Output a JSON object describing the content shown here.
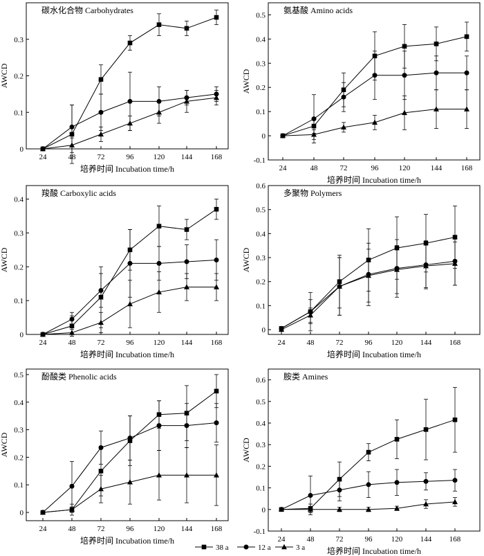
{
  "figure": {
    "xlabel": "培养时间 Incubation time/h",
    "ylabel": "AWCD",
    "x": [
      24,
      48,
      72,
      96,
      120,
      144,
      168
    ],
    "legend": [
      {
        "label": "38 a",
        "marker": "square"
      },
      {
        "label": "12 a",
        "marker": "circle"
      },
      {
        "label": "3 a",
        "marker": "triangle"
      }
    ]
  },
  "chart_data": [
    {
      "type": "line",
      "title": "碳水化合物 Carbohydrates",
      "xlabel": "培养时间 Incubation time/h",
      "ylabel": "AWCD",
      "categories": [
        24,
        48,
        72,
        96,
        120,
        144,
        168
      ],
      "ylim": [
        0,
        0.4
      ],
      "yticks": [
        0,
        0.1,
        0.2,
        0.3
      ],
      "series": [
        {
          "name": "38 a",
          "values": [
            0,
            0.04,
            0.19,
            0.29,
            0.34,
            0.33,
            0.36
          ],
          "errors": [
            0,
            0.08,
            0.04,
            0.02,
            0.03,
            0.02,
            0.02
          ]
        },
        {
          "name": "12 a",
          "values": [
            0,
            0.06,
            0.1,
            0.13,
            0.13,
            0.14,
            0.15
          ],
          "errors": [
            0,
            0.06,
            0.05,
            0.08,
            0.04,
            0.02,
            0.02
          ]
        },
        {
          "name": "3 a",
          "values": [
            0,
            0.01,
            0.04,
            0.07,
            0.1,
            0.13,
            0.14
          ],
          "errors": [
            0,
            0.02,
            0.02,
            0.02,
            0.03,
            0.03,
            0.02
          ]
        }
      ]
    },
    {
      "type": "line",
      "title": "氨基酸 Amino acids",
      "xlabel": "培养时间 Incubation time/h",
      "ylabel": "AWCD",
      "categories": [
        24,
        48,
        72,
        96,
        120,
        144,
        168
      ],
      "ylim": [
        -0.1,
        0.55
      ],
      "yticks": [
        -0.1,
        0,
        0.1,
        0.2,
        0.3,
        0.4,
        0.5
      ],
      "series": [
        {
          "name": "38 a",
          "values": [
            0,
            0.04,
            0.19,
            0.33,
            0.37,
            0.38,
            0.41
          ],
          "errors": [
            0,
            0.03,
            0.07,
            0.1,
            0.09,
            0.07,
            0.06
          ]
        },
        {
          "name": "12 a",
          "values": [
            0,
            0.07,
            0.16,
            0.25,
            0.25,
            0.26,
            0.26
          ],
          "errors": [
            0,
            0.1,
            0.06,
            0.1,
            0.1,
            0.07,
            0.07
          ]
        },
        {
          "name": "3 a",
          "values": [
            0,
            0.005,
            0.035,
            0.055,
            0.095,
            0.11,
            0.11
          ],
          "errors": [
            0,
            0.02,
            0.02,
            0.03,
            0.07,
            0.08,
            0.08
          ]
        }
      ]
    },
    {
      "type": "line",
      "title": "羧酸 Carboxylic acids",
      "xlabel": "培养时间 Incubation time/h",
      "ylabel": "AWCD",
      "categories": [
        24,
        48,
        72,
        96,
        120,
        144,
        168
      ],
      "ylim": [
        0,
        0.44
      ],
      "yticks": [
        0,
        0.1,
        0.2,
        0.3,
        0.4
      ],
      "series": [
        {
          "name": "38 a",
          "values": [
            0,
            0.025,
            0.11,
            0.25,
            0.32,
            0.31,
            0.37
          ],
          "errors": [
            0,
            0.03,
            0.09,
            0.06,
            0.06,
            0.03,
            0.03
          ]
        },
        {
          "name": "12 a",
          "values": [
            0,
            0.045,
            0.13,
            0.21,
            0.21,
            0.215,
            0.22
          ],
          "errors": [
            0,
            0.02,
            0.05,
            0.1,
            0.05,
            0.05,
            0.06
          ]
        },
        {
          "name": "3 a",
          "values": [
            0,
            0.005,
            0.035,
            0.09,
            0.125,
            0.14,
            0.14
          ],
          "errors": [
            0,
            0.01,
            0.03,
            0.07,
            0.06,
            0.04,
            0.04
          ]
        }
      ]
    },
    {
      "type": "line",
      "title": "多聚物 Polymers",
      "xlabel": "培养时间 Incubation time/h",
      "ylabel": "AWCD",
      "categories": [
        24,
        48,
        72,
        96,
        120,
        144,
        168
      ],
      "ylim": [
        -0.02,
        0.6
      ],
      "yticks": [
        0,
        0.1,
        0.2,
        0.3,
        0.4,
        0.5,
        0.6
      ],
      "series": [
        {
          "name": "38 a",
          "values": [
            0.005,
            0.075,
            0.2,
            0.29,
            0.34,
            0.36,
            0.385
          ],
          "errors": [
            0,
            0.08,
            0.11,
            0.13,
            0.13,
            0.12,
            0.13
          ]
        },
        {
          "name": "12 a",
          "values": [
            0.005,
            0.075,
            0.18,
            0.23,
            0.255,
            0.27,
            0.285
          ],
          "errors": [
            0,
            0.05,
            0.12,
            0.13,
            0.12,
            0.1,
            0.1
          ]
        },
        {
          "name": "3 a",
          "values": [
            0,
            0.06,
            0.18,
            0.225,
            0.25,
            0.265,
            0.275
          ],
          "errors": [
            0,
            0.03,
            0.12,
            0.11,
            0.1,
            0.09,
            0.09
          ]
        }
      ]
    },
    {
      "type": "line",
      "title": "酚酸类 Phenolic acids",
      "xlabel": "培养时间 Incubation time/h",
      "ylabel": "AWCD",
      "categories": [
        24,
        48,
        72,
        96,
        120,
        144,
        168
      ],
      "ylim": [
        -0.03,
        0.52
      ],
      "yticks": [
        0,
        0.1,
        0.2,
        0.3,
        0.4,
        0.5
      ],
      "series": [
        {
          "name": "38 a",
          "values": [
            0,
            0.01,
            0.15,
            0.26,
            0.355,
            0.36,
            0.44
          ],
          "errors": [
            0,
            0.02,
            0.09,
            0.09,
            0.05,
            0.1,
            0.06
          ]
        },
        {
          "name": "12 a",
          "values": [
            0,
            0.095,
            0.235,
            0.27,
            0.315,
            0.315,
            0.325
          ],
          "errors": [
            0,
            0.09,
            0.06,
            0.08,
            0.09,
            0.08,
            0.07
          ]
        },
        {
          "name": "3 a",
          "values": [
            0,
            0.01,
            0.085,
            0.11,
            0.135,
            0.135,
            0.135
          ],
          "errors": [
            0,
            0.01,
            0.05,
            0.08,
            0.09,
            0.1,
            0.11
          ]
        }
      ]
    },
    {
      "type": "line",
      "title": "胺类 Amines",
      "xlabel": "培养时间 Incubation time/h",
      "ylabel": "AWCD",
      "categories": [
        24,
        48,
        72,
        96,
        120,
        144,
        168
      ],
      "ylim": [
        -0.1,
        0.65
      ],
      "yticks": [
        -0.1,
        0,
        0.1,
        0.2,
        0.3,
        0.4,
        0.5,
        0.6
      ],
      "series": [
        {
          "name": "38 a",
          "values": [
            0,
            0.005,
            0.14,
            0.265,
            0.325,
            0.37,
            0.415
          ],
          "errors": [
            0,
            0.02,
            0.08,
            0.04,
            0.09,
            0.14,
            0.15
          ]
        },
        {
          "name": "12 a",
          "values": [
            0,
            0.065,
            0.09,
            0.115,
            0.125,
            0.13,
            0.135
          ],
          "errors": [
            0,
            0.09,
            0.05,
            0.06,
            0.06,
            0.04,
            0.05
          ]
        },
        {
          "name": "3 a",
          "values": [
            0,
            0,
            0,
            0,
            0.005,
            0.025,
            0.035
          ],
          "errors": [
            0,
            0.01,
            0.01,
            0.01,
            0.01,
            0.02,
            0.02
          ]
        }
      ]
    }
  ]
}
